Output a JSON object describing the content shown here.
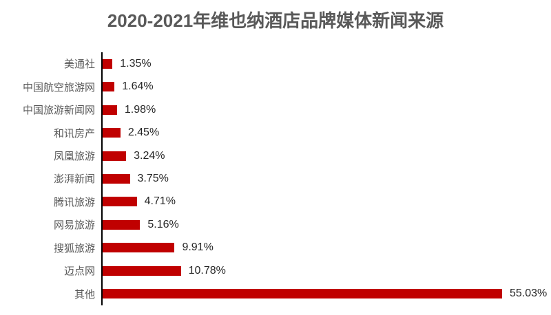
{
  "title": "2020-2021年维也纳酒店品牌媒体新闻来源",
  "chart_data": {
    "type": "bar",
    "orientation": "horizontal",
    "title": "2020-2021年维也纳酒店品牌媒体新闻来源",
    "categories": [
      "美通社",
      "中国航空旅游网",
      "中国旅游新闻网",
      "和讯房产",
      "凤凰旅游",
      "澎湃新闻",
      "腾讯旅游",
      "网易旅游",
      "搜狐旅游",
      "迈点网",
      "其他"
    ],
    "values": [
      1.35,
      1.64,
      1.98,
      2.45,
      3.24,
      3.75,
      4.71,
      5.16,
      9.91,
      10.78,
      55.03
    ],
    "value_labels": [
      "1.35%",
      "1.64%",
      "1.98%",
      "2.45%",
      "3.24%",
      "3.75%",
      "4.71%",
      "5.16%",
      "9.91%",
      "10.78%",
      "55.03%"
    ],
    "xlabel": "",
    "ylabel": "",
    "xlim": [
      0,
      60
    ],
    "grid": false,
    "legend": "none",
    "bar_color": "#c00000",
    "axis_color": "#000000",
    "category_label_color": "#595959",
    "value_label_color": "#262626",
    "title_color": "#595959",
    "background_color": "#ffffff"
  }
}
